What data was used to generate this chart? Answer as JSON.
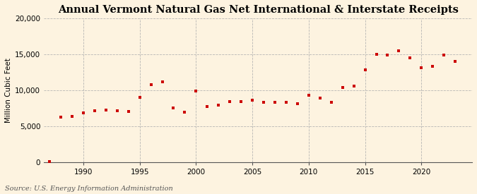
{
  "title": "Annual Vermont Natural Gas Net International & Interstate Receipts",
  "ylabel": "Million Cubic Feet",
  "source": "Source: U.S. Energy Information Administration",
  "background_color": "#fdf3e0",
  "marker_color": "#cc0000",
  "grid_color": "#b0b0b0",
  "years": [
    1987,
    1988,
    1989,
    1990,
    1991,
    1992,
    1993,
    1994,
    1995,
    1996,
    1997,
    1998,
    1999,
    2000,
    2001,
    2002,
    2003,
    2004,
    2005,
    2006,
    2007,
    2008,
    2009,
    2010,
    2011,
    2012,
    2013,
    2014,
    2015,
    2016,
    2017,
    2018,
    2019,
    2020,
    2021,
    2022,
    2023
  ],
  "values": [
    100,
    6250,
    6400,
    6900,
    7200,
    7300,
    7200,
    7100,
    9000,
    10800,
    11200,
    7500,
    7000,
    9950,
    7700,
    7900,
    8400,
    8400,
    8600,
    8300,
    8300,
    8300,
    8100,
    9300,
    8900,
    8300,
    10400,
    10600,
    12900,
    15000,
    14900,
    15500,
    14500,
    13100,
    13300,
    14900,
    14000
  ],
  "xlim": [
    1986.5,
    2024.5
  ],
  "ylim": [
    0,
    20000
  ],
  "yticks": [
    0,
    5000,
    10000,
    15000,
    20000
  ],
  "xticks": [
    1990,
    1995,
    2000,
    2005,
    2010,
    2015,
    2020
  ],
  "title_fontsize": 10.5,
  "label_fontsize": 7.5,
  "tick_fontsize": 7.5,
  "source_fontsize": 7.0
}
